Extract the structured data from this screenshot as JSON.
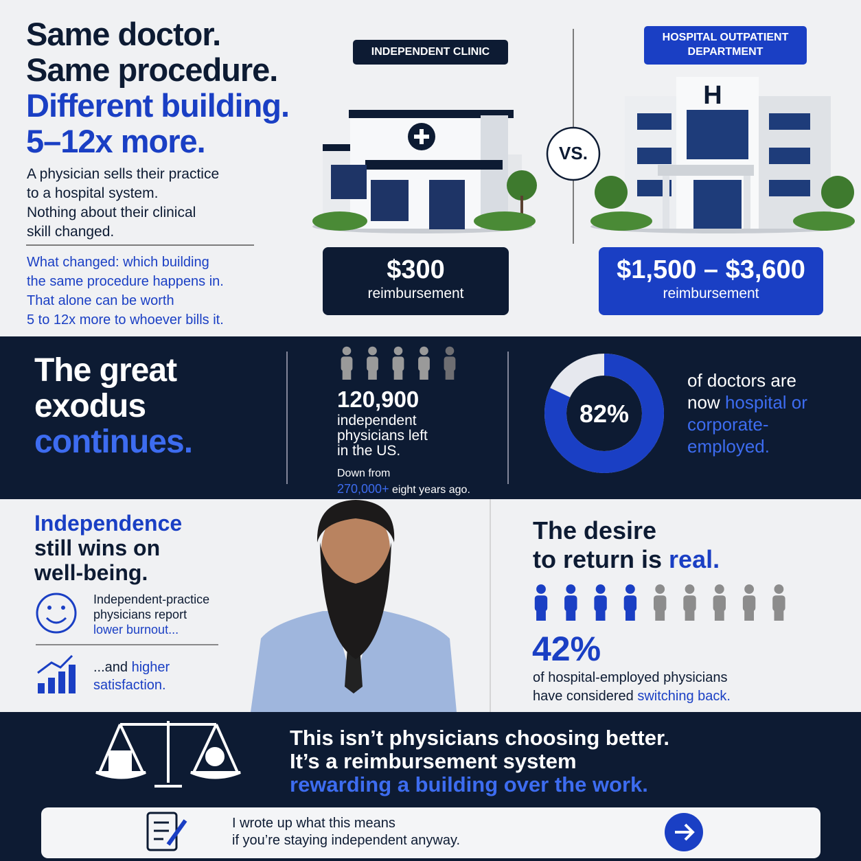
{
  "hero": {
    "title_lines": [
      "Same doctor.",
      "Same procedure."
    ],
    "title_highlight_lines": [
      "Different building.",
      "5–12x more."
    ],
    "intro_lines": [
      "A physician sells their practice",
      "to a hospital system.",
      "Nothing about their clinical",
      "skill changed."
    ],
    "highlight_lines": [
      "What changed: which building",
      "the same procedure happens in.",
      "That alone can be worth",
      "5 to 12x more to whoever bills it."
    ]
  },
  "comparison": {
    "left": {
      "label": "INDEPENDENT CLINIC",
      "amount": "$300",
      "unit": "reimbursement"
    },
    "vs": "VS.",
    "right": {
      "label_lines": [
        "HOSPITAL OUTPATIENT",
        "DEPARTMENT"
      ],
      "sign": "H",
      "amount": "$1,500 – $3,600",
      "unit": "reimbursement"
    }
  },
  "exodus": {
    "title_lines": [
      "The great",
      "exodus"
    ],
    "title_highlight": "continues.",
    "stat": "120,900",
    "stat_lines": [
      "independent",
      "physicians left",
      "in the US."
    ],
    "down_from": "Down from",
    "prior": "270,000+",
    "prior_suffix": "eight years ago."
  },
  "donut": {
    "value": 82,
    "label": "82%",
    "text_line_1": "of doctors are",
    "text_line_2_plain": "now",
    "text_line_2_highlight": "hospital or",
    "text_highlight_lines": [
      "corporate-",
      "employed."
    ]
  },
  "wellbeing": {
    "title_highlight": "Independence",
    "title_lines": [
      "still wins on",
      "well-being."
    ],
    "item_1_lines": [
      "Independent-practice",
      "physicians report"
    ],
    "item_1_highlight": "lower burnout...",
    "item_2_plain": "...and",
    "item_2_highlight": "higher",
    "item_2_highlight_line": "satisfaction."
  },
  "desire": {
    "title_line_1": "The desire",
    "title_line_2_plain": "to return is",
    "title_line_2_highlight": "real.",
    "stat": "42%",
    "text_line_1": "of hospital-employed physicians",
    "text_line_2_plain": "have considered",
    "text_line_2_highlight": "switching back."
  },
  "footer": {
    "lines": [
      "This isn’t physicians choosing better.",
      "It’s a reimbursement system"
    ],
    "highlight": "rewarding a building over the work.",
    "cta_lines": [
      "I wrote up what this means",
      "if you’re staying independent anyway."
    ]
  }
}
